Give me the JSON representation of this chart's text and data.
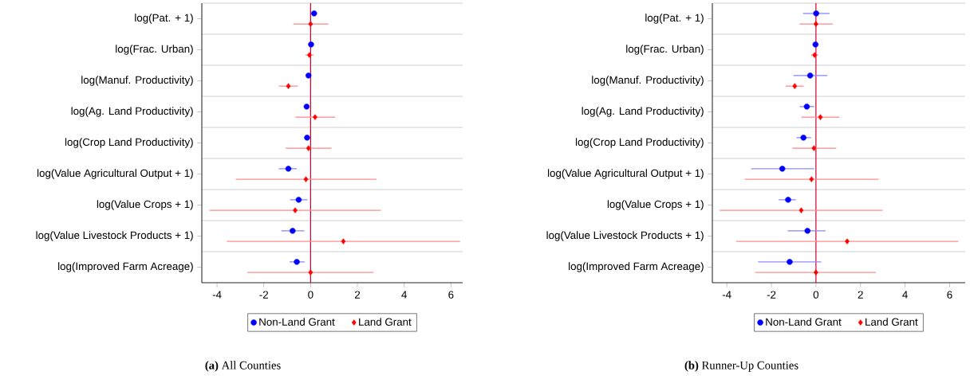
{
  "chart_data": [
    {
      "type": "scatter",
      "title": "**(a)** All Counties",
      "orientation": "horizontal",
      "categories": [
        "log(Pat. + 1)",
        "log(Frac. Urban)",
        "log(Manuf. Productivity)",
        "log(Ag. Land Productivity)",
        "log(Crop Land Productivity)",
        "log(Value Agricultural Output + 1)",
        "log(Value Crops + 1)",
        "log(Value Livestock Products + 1)",
        "log(Improved Farm Acreage)"
      ],
      "xlim": [
        -4.65,
        6.5
      ],
      "xticks": [
        -4,
        -2,
        0,
        2,
        4,
        6
      ],
      "ref_lines": [
        {
          "axis": "x",
          "value": 0,
          "color": "#cc0033"
        }
      ],
      "grid": "y",
      "legend": "bottom",
      "series": [
        {
          "name": "Non-Land Grant",
          "color": "#0000ff",
          "marker": "circle",
          "values": [
            0.15,
            0.02,
            -0.09,
            -0.17,
            -0.15,
            -0.95,
            -0.51,
            -0.77,
            -0.59
          ],
          "errors": [
            null,
            null,
            null,
            null,
            null,
            [
              -1.36,
              -0.59
            ],
            [
              -0.88,
              -0.14
            ],
            [
              -1.25,
              -0.27
            ],
            [
              -0.9,
              -0.26
            ]
          ]
        },
        {
          "name": "Land Grant",
          "color": "#ff0000",
          "marker": "diamond",
          "values": [
            0,
            -0.05,
            -0.95,
            0.19,
            -0.09,
            -0.2,
            -0.66,
            1.4,
            0
          ],
          "errors": [
            [
              -0.74,
              0.75
            ],
            [
              -0.22,
              0.12
            ],
            [
              -1.36,
              -0.55
            ],
            [
              -0.65,
              1.05
            ],
            [
              -1.06,
              0.89
            ],
            [
              -3.2,
              2.82
            ],
            [
              -4.32,
              3.0
            ],
            [
              -3.58,
              6.39
            ],
            [
              -2.7,
              2.69
            ]
          ]
        }
      ]
    },
    {
      "type": "scatter",
      "title": "**(b)** Runner-Up Counties",
      "orientation": "horizontal",
      "categories": [
        "log(Pat. + 1)",
        "log(Frac. Urban)",
        "log(Manuf. Productivity)",
        "log(Ag. Land Productivity)",
        "log(Crop Land Productivity)",
        "log(Value Agricultural Output + 1)",
        "log(Value Crops + 1)",
        "log(Value Livestock Products + 1)",
        "log(Improved Farm Acreage)"
      ],
      "xlim": [
        -4.65,
        6.7
      ],
      "xticks": [
        -4,
        -2,
        0,
        2,
        4,
        6
      ],
      "ref_lines": [
        {
          "axis": "x",
          "value": 0,
          "color": "#cc0033"
        }
      ],
      "grid": "y",
      "legend": "bottom",
      "series": [
        {
          "name": "Non-Land Grant",
          "color": "#0000ff",
          "marker": "circle",
          "values": [
            0.01,
            -0.02,
            -0.26,
            -0.41,
            -0.56,
            -1.51,
            -1.25,
            -0.38,
            -1.18
          ],
          "errors": [
            [
              -0.58,
              0.61
            ],
            null,
            [
              -1.01,
              0.51
            ],
            [
              -0.73,
              -0.08
            ],
            [
              -0.88,
              -0.22
            ],
            [
              -2.91,
              -0.08
            ],
            [
              -1.67,
              -0.9
            ],
            [
              -1.27,
              0.43
            ],
            [
              -2.6,
              0.24
            ]
          ]
        },
        {
          "name": "Land Grant",
          "color": "#ff0000",
          "marker": "diamond",
          "values": [
            0,
            -0.06,
            -0.95,
            0.2,
            -0.09,
            -0.2,
            -0.66,
            1.4,
            0
          ],
          "errors": [
            [
              -0.74,
              0.75
            ],
            [
              -0.22,
              0.11
            ],
            [
              -1.36,
              -0.55
            ],
            [
              -0.65,
              1.05
            ],
            [
              -1.06,
              0.91
            ],
            [
              -3.2,
              2.82
            ],
            [
              -4.32,
              2.99
            ],
            [
              -3.58,
              6.39
            ],
            [
              -2.72,
              2.69
            ]
          ]
        }
      ]
    }
  ]
}
